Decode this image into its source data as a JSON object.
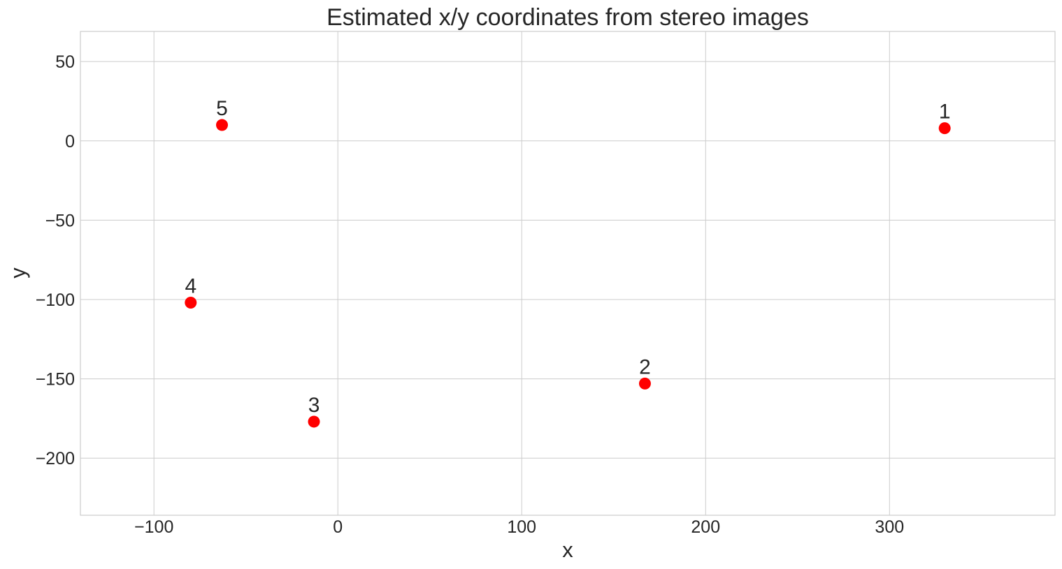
{
  "chart_data": {
    "type": "scatter",
    "title": "Estimated x/y coordinates from stereo images",
    "xlabel": "x",
    "ylabel": "y",
    "xlim": [
      -140,
      390
    ],
    "ylim": [
      -236,
      69
    ],
    "xticks": [
      -100,
      0,
      100,
      200,
      300
    ],
    "yticks": [
      50,
      0,
      -50,
      -100,
      -150,
      -200
    ],
    "xtick_labels": [
      "−100",
      "0",
      "100",
      "200",
      "300"
    ],
    "ytick_labels": [
      "50",
      "0",
      "−50",
      "−100",
      "−150",
      "−200"
    ],
    "grid": true,
    "marker_color": "#ff0000",
    "points": [
      {
        "label": "1",
        "x": 330,
        "y": 8
      },
      {
        "label": "2",
        "x": 167,
        "y": -153
      },
      {
        "label": "3",
        "x": -13,
        "y": -177
      },
      {
        "label": "4",
        "x": -80,
        "y": -102
      },
      {
        "label": "5",
        "x": -63,
        "y": 10
      }
    ]
  }
}
